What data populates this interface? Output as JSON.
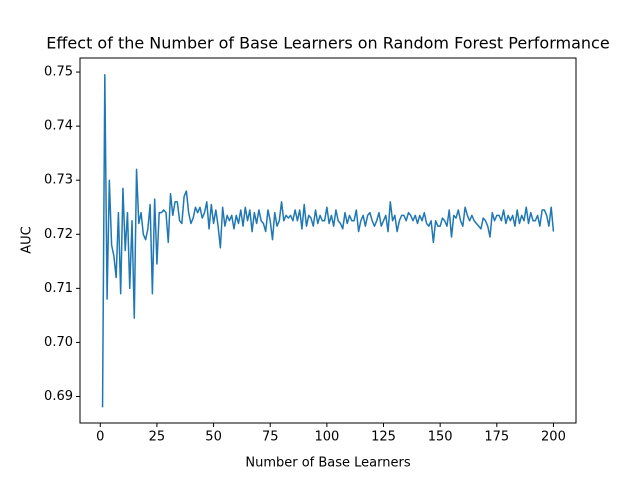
{
  "chart_data": {
    "type": "line",
    "title": "Effect of the Number of Base Learners on Random Forest Performance",
    "xlabel": "Number of Base Learners",
    "ylabel": "AUC",
    "color": "#1f77b4",
    "x": [
      1,
      2,
      3,
      4,
      5,
      6,
      7,
      8,
      9,
      10,
      11,
      12,
      13,
      14,
      15,
      16,
      17,
      18,
      19,
      20,
      21,
      22,
      23,
      24,
      25,
      26,
      27,
      28,
      29,
      30,
      31,
      32,
      33,
      34,
      35,
      36,
      37,
      38,
      39,
      40,
      41,
      42,
      43,
      44,
      45,
      46,
      47,
      48,
      49,
      50,
      51,
      52,
      53,
      54,
      55,
      56,
      57,
      58,
      59,
      60,
      61,
      62,
      63,
      64,
      65,
      66,
      67,
      68,
      69,
      70,
      71,
      72,
      73,
      74,
      75,
      76,
      77,
      78,
      79,
      80,
      81,
      82,
      83,
      84,
      85,
      86,
      87,
      88,
      89,
      90,
      91,
      92,
      93,
      94,
      95,
      96,
      97,
      98,
      99,
      100,
      101,
      102,
      103,
      104,
      105,
      106,
      107,
      108,
      109,
      110,
      111,
      112,
      113,
      114,
      115,
      116,
      117,
      118,
      119,
      120,
      121,
      122,
      123,
      124,
      125,
      126,
      127,
      128,
      129,
      130,
      131,
      132,
      133,
      134,
      135,
      136,
      137,
      138,
      139,
      140,
      141,
      142,
      143,
      144,
      145,
      146,
      147,
      148,
      149,
      150,
      151,
      152,
      153,
      154,
      155,
      156,
      157,
      158,
      159,
      160,
      161,
      162,
      163,
      164,
      165,
      166,
      167,
      168,
      169,
      170,
      171,
      172,
      173,
      174,
      175,
      176,
      177,
      178,
      179,
      180,
      181,
      182,
      183,
      184,
      185,
      186,
      187,
      188,
      189,
      190,
      191,
      192,
      193,
      194,
      195,
      196,
      197,
      198,
      199,
      200
    ],
    "values": [
      0.688,
      0.7495,
      0.708,
      0.73,
      0.718,
      0.716,
      0.712,
      0.724,
      0.709,
      0.7285,
      0.717,
      0.724,
      0.71,
      0.7225,
      0.7045,
      0.732,
      0.722,
      0.724,
      0.72,
      0.719,
      0.721,
      0.7255,
      0.709,
      0.7265,
      0.7145,
      0.724,
      0.724,
      0.7245,
      0.724,
      0.7185,
      0.7275,
      0.7235,
      0.726,
      0.726,
      0.7225,
      0.722,
      0.727,
      0.728,
      0.724,
      0.722,
      0.723,
      0.725,
      0.724,
      0.725,
      0.723,
      0.724,
      0.726,
      0.721,
      0.7255,
      0.722,
      0.7245,
      0.7215,
      0.7175,
      0.725,
      0.7215,
      0.7235,
      0.7225,
      0.7235,
      0.721,
      0.7235,
      0.722,
      0.7245,
      0.7215,
      0.725,
      0.7225,
      0.7245,
      0.7205,
      0.724,
      0.722,
      0.7245,
      0.7225,
      0.722,
      0.7205,
      0.7245,
      0.7225,
      0.719,
      0.724,
      0.7215,
      0.7225,
      0.726,
      0.7225,
      0.7235,
      0.723,
      0.7235,
      0.7225,
      0.7245,
      0.7225,
      0.7245,
      0.721,
      0.7255,
      0.7215,
      0.7235,
      0.723,
      0.7215,
      0.7245,
      0.722,
      0.7235,
      0.7225,
      0.7225,
      0.725,
      0.722,
      0.7235,
      0.7215,
      0.7245,
      0.7225,
      0.722,
      0.721,
      0.724,
      0.722,
      0.7235,
      0.7225,
      0.7225,
      0.7245,
      0.7205,
      0.7225,
      0.7235,
      0.7215,
      0.7235,
      0.724,
      0.7225,
      0.7215,
      0.7225,
      0.724,
      0.7215,
      0.7225,
      0.7235,
      0.7205,
      0.726,
      0.7225,
      0.7235,
      0.7205,
      0.7225,
      0.7235,
      0.7235,
      0.7225,
      0.724,
      0.7235,
      0.7225,
      0.7235,
      0.722,
      0.7235,
      0.7225,
      0.724,
      0.722,
      0.7215,
      0.7225,
      0.7185,
      0.7225,
      0.7215,
      0.7215,
      0.723,
      0.7225,
      0.7215,
      0.7245,
      0.7195,
      0.7235,
      0.723,
      0.7245,
      0.7225,
      0.7215,
      0.725,
      0.7235,
      0.7225,
      0.7235,
      0.7225,
      0.722,
      0.7215,
      0.721,
      0.723,
      0.7225,
      0.7215,
      0.7195,
      0.724,
      0.7225,
      0.7235,
      0.7235,
      0.7225,
      0.7245,
      0.722,
      0.7235,
      0.7225,
      0.7235,
      0.7215,
      0.7245,
      0.722,
      0.7235,
      0.7225,
      0.725,
      0.722,
      0.724,
      0.7225,
      0.7225,
      0.7235,
      0.7215,
      0.7245,
      0.7245,
      0.7235,
      0.7215,
      0.725,
      0.7205
    ],
    "xlim": [
      -8.95,
      209.95
    ],
    "xticks": [
      0,
      25,
      50,
      75,
      100,
      125,
      150,
      175,
      200
    ],
    "ylim": [
      0.6851,
      0.7526
    ],
    "yticks": [
      0.69,
      {
        "value": 0.7,
        "label": "0.70"
      },
      0.71,
      0.72,
      0.73,
      0.74,
      0.75
    ]
  }
}
